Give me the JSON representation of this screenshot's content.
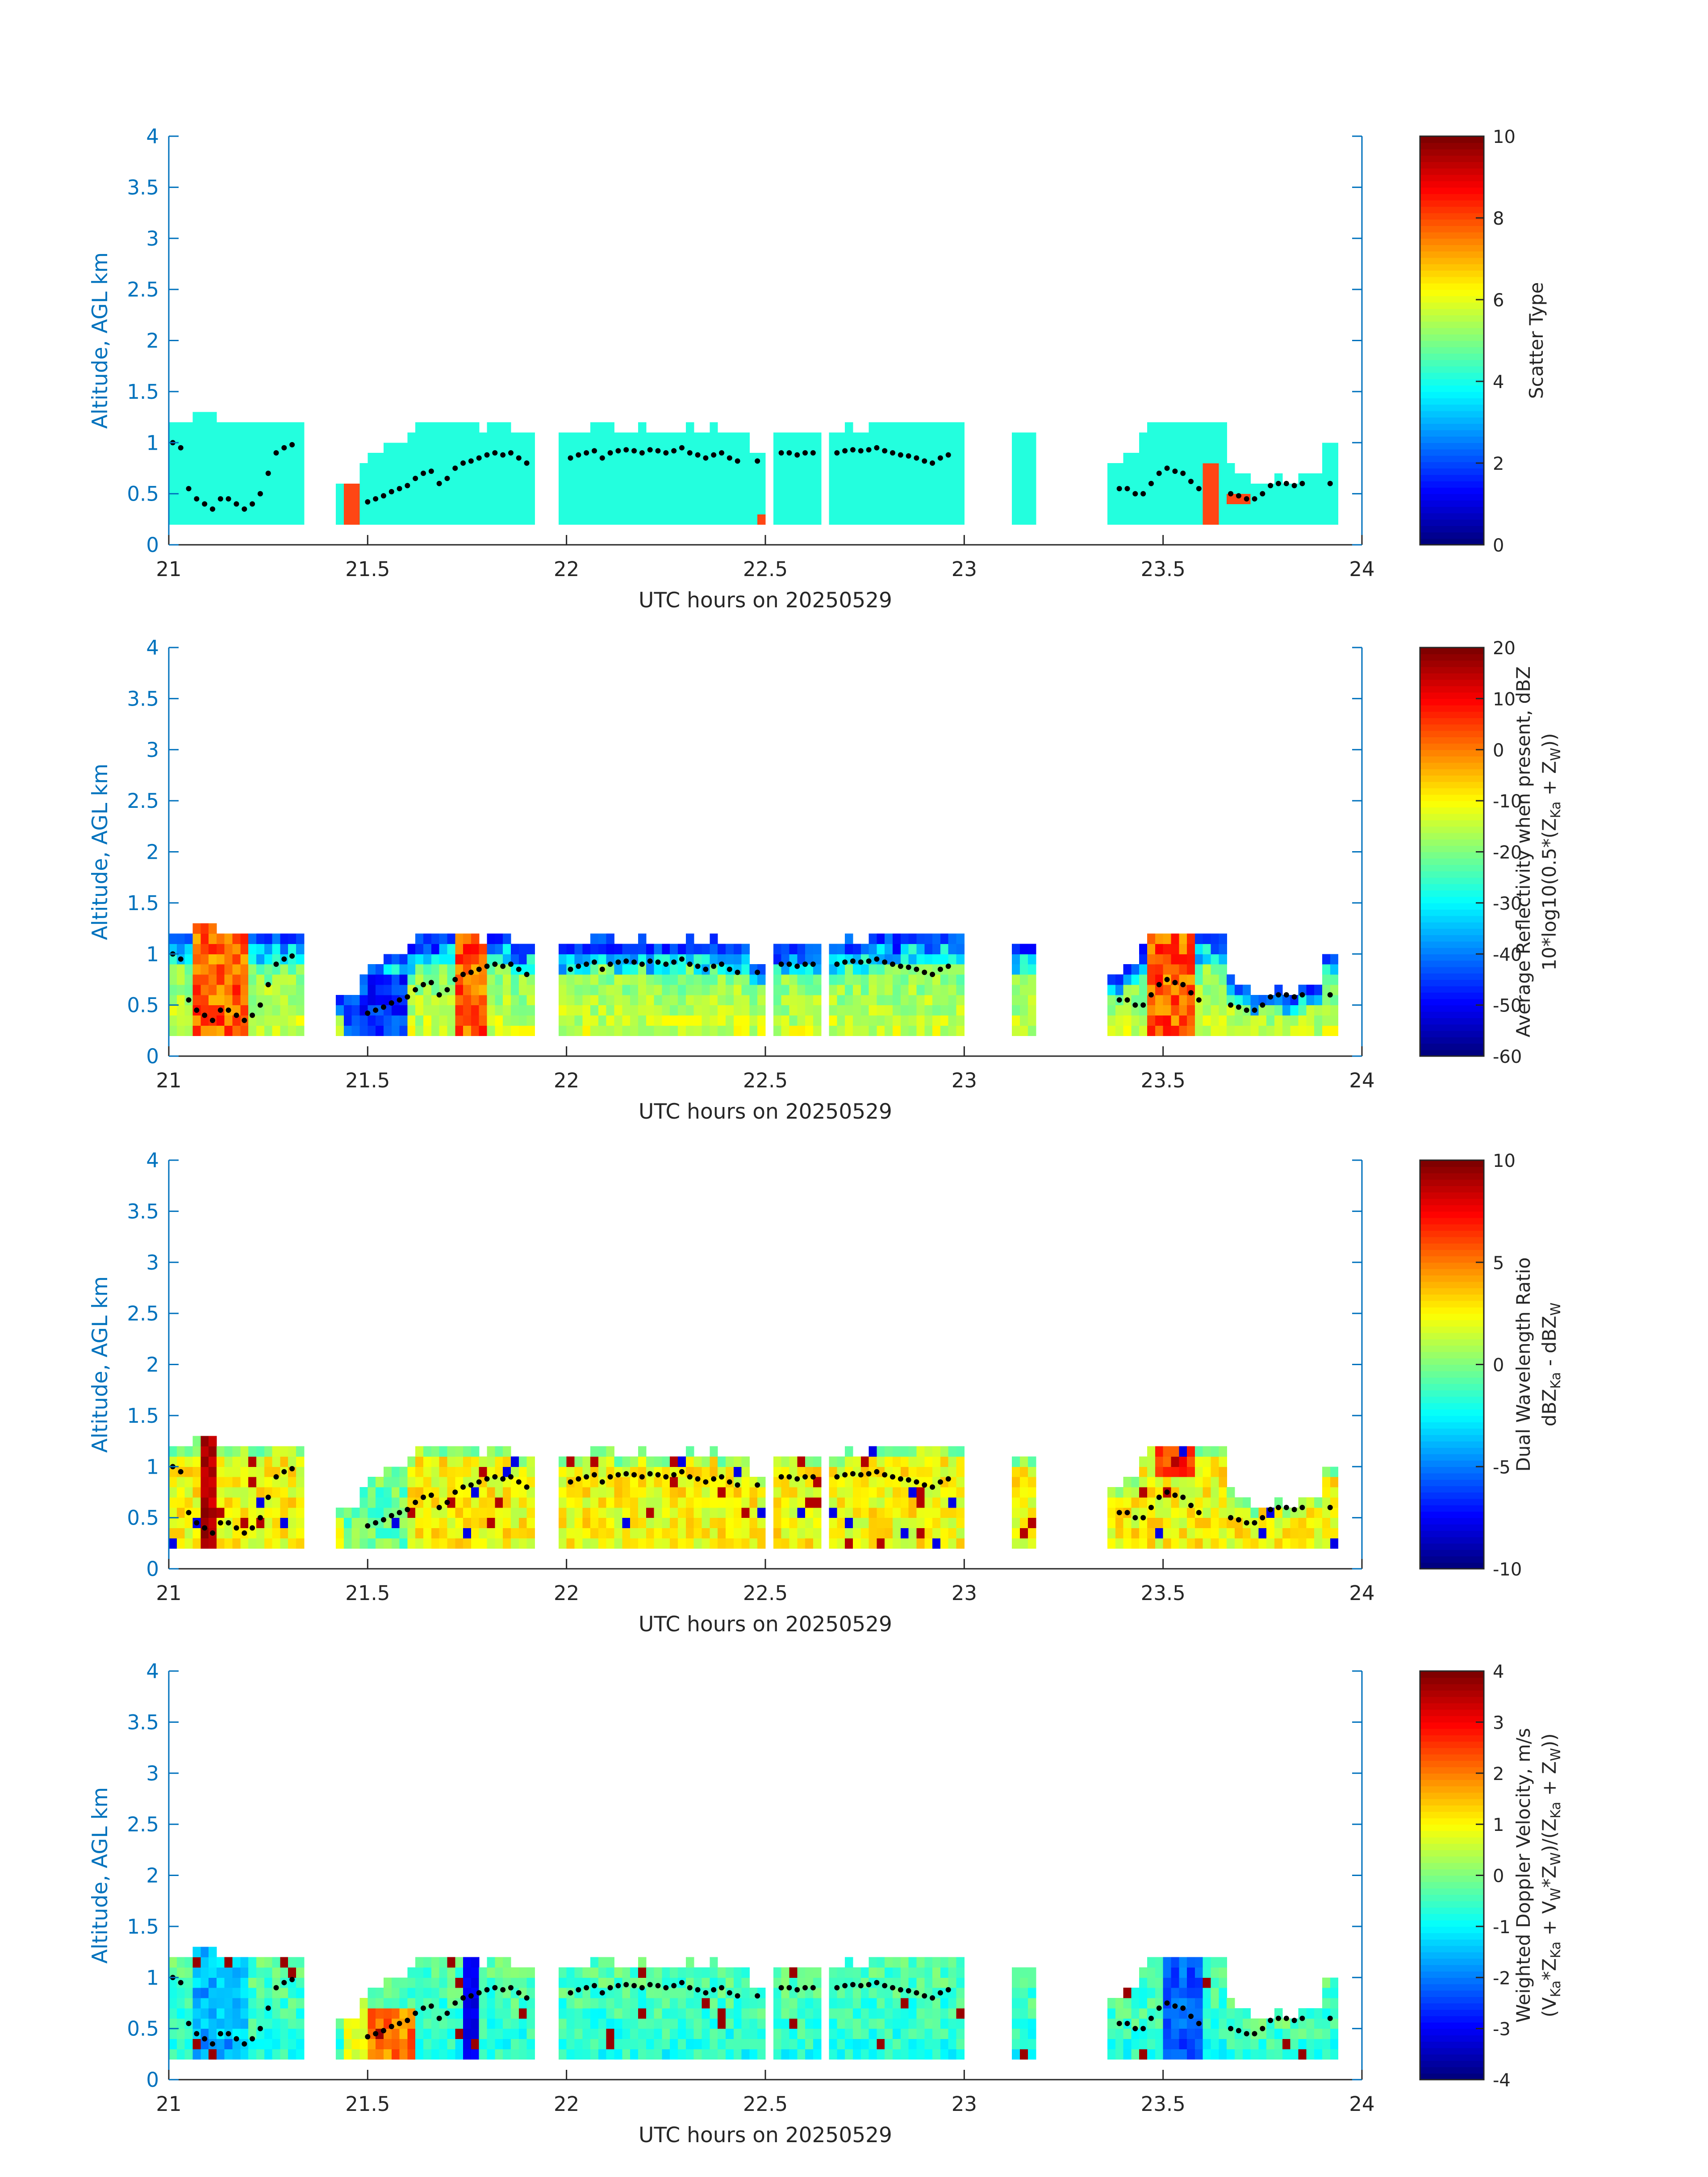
{
  "chart_data": [
    {
      "type": "heatmap",
      "title": "",
      "xlabel": "UTC hours on 20250529",
      "ylabel": "Altitude, AGL km",
      "xlim": [
        21,
        24
      ],
      "ylim": [
        0,
        4
      ],
      "x_ticks": [
        "21",
        "21.5",
        "22",
        "22.5",
        "23",
        "23.5",
        "24"
      ],
      "y_ticks": [
        "0",
        "0.5",
        "1",
        "1.5",
        "2",
        "2.5",
        "3",
        "3.5",
        "4"
      ],
      "colorbar": {
        "label_lines": [
          "Scatter Type"
        ],
        "clim": [
          0,
          10
        ],
        "ticks": [
          "0",
          "2",
          "4",
          "6",
          "8",
          "10"
        ]
      },
      "field": "scatter",
      "grid": false,
      "legend": "none"
    },
    {
      "type": "heatmap",
      "title": "",
      "xlabel": "UTC hours on 20250529",
      "ylabel": "Altitude, AGL km",
      "xlim": [
        21,
        24
      ],
      "ylim": [
        0,
        4
      ],
      "x_ticks": [
        "21",
        "21.5",
        "22",
        "22.5",
        "23",
        "23.5",
        "24"
      ],
      "y_ticks": [
        "0",
        "0.5",
        "1",
        "1.5",
        "2",
        "2.5",
        "3",
        "3.5",
        "4"
      ],
      "colorbar": {
        "label_lines": [
          "Average Reflectivity when present, dBZ",
          "10*log10(0.5*(Z_Ka + Z_W))"
        ],
        "clim": [
          -60,
          20
        ],
        "ticks": [
          "-60",
          "-50",
          "-40",
          "-30",
          "-20",
          "-10",
          "0",
          "10",
          "20"
        ]
      },
      "field": "reflectivity",
      "grid": false,
      "legend": "none"
    },
    {
      "type": "heatmap",
      "title": "",
      "xlabel": "UTC hours on 20250529",
      "ylabel": "Altitude, AGL km",
      "xlim": [
        21,
        24
      ],
      "ylim": [
        0,
        4
      ],
      "x_ticks": [
        "21",
        "21.5",
        "22",
        "22.5",
        "23",
        "23.5",
        "24"
      ],
      "y_ticks": [
        "0",
        "0.5",
        "1",
        "1.5",
        "2",
        "2.5",
        "3",
        "3.5",
        "4"
      ],
      "colorbar": {
        "label_lines": [
          "Dual Wavelength Ratio",
          "dBZ_Ka - dBZ_W"
        ],
        "clim": [
          -10,
          10
        ],
        "ticks": [
          "-10",
          "-5",
          "0",
          "5",
          "10"
        ]
      },
      "field": "dwr",
      "grid": false,
      "legend": "none"
    },
    {
      "type": "heatmap",
      "title": "",
      "xlabel": "UTC hours on 20250529",
      "ylabel": "Altitude, AGL km",
      "xlim": [
        21,
        24
      ],
      "ylim": [
        0,
        4
      ],
      "x_ticks": [
        "21",
        "21.5",
        "22",
        "22.5",
        "23",
        "23.5",
        "24"
      ],
      "y_ticks": [
        "0",
        "0.5",
        "1",
        "1.5",
        "2",
        "2.5",
        "3",
        "3.5",
        "4"
      ],
      "colorbar": {
        "label_lines": [
          "Weighted Doppler Velocity, m/s",
          "(V_Ka*Z_Ka + V_W*Z_W)/(Z_Ka + Z_W))"
        ],
        "clim": [
          -4,
          4
        ],
        "ticks": [
          "-4",
          "-3",
          "-2",
          "-1",
          "0",
          "1",
          "2",
          "3",
          "4"
        ]
      },
      "field": "velocity",
      "grid": false,
      "legend": "none"
    }
  ],
  "cloud_segments": [
    {
      "x0": 21.0,
      "x1": 21.33,
      "tops": [
        1.2,
        1.2,
        1.25,
        1.28,
        1.2,
        1.15,
        1.18,
        1.2,
        1.2,
        1.15,
        1.18
      ]
    },
    {
      "x0": 21.43,
      "x1": 21.47,
      "tops": [
        0.55,
        0.6
      ]
    },
    {
      "x0": 21.47,
      "x1": 21.92,
      "tops": [
        0.8,
        0.9,
        0.95,
        1.0,
        1.1,
        1.15,
        1.15,
        1.2,
        1.2,
        1.15,
        1.1,
        1.15,
        1.2,
        1.05,
        1.1
      ]
    },
    {
      "x0": 21.99,
      "x1": 22.45,
      "tops": [
        1.1,
        1.12,
        1.15,
        1.15,
        1.1,
        1.1,
        1.15,
        1.12,
        1.1,
        1.12,
        1.15,
        1.1,
        1.15,
        1.1,
        1.12
      ]
    },
    {
      "x0": 22.47,
      "x1": 22.5,
      "tops": [
        0.9
      ]
    },
    {
      "x0": 22.52,
      "x1": 22.64,
      "tops": [
        1.05,
        1.08,
        1.05,
        1.08
      ]
    },
    {
      "x0": 22.66,
      "x1": 22.99,
      "tops": [
        1.1,
        1.15,
        1.12,
        1.18,
        1.2,
        1.15,
        1.18,
        1.2,
        1.15,
        1.2,
        1.15
      ]
    },
    {
      "x0": 23.13,
      "x1": 23.17,
      "tops": [
        1.1
      ]
    },
    {
      "x0": 23.37,
      "x1": 23.65,
      "tops": [
        0.8,
        0.9,
        1.05,
        1.15,
        1.2,
        1.2,
        1.2,
        1.2,
        1.15
      ]
    },
    {
      "x0": 23.65,
      "x1": 23.9,
      "tops": [
        0.8,
        0.7,
        0.55,
        0.6,
        0.65,
        0.55,
        0.65,
        0.7
      ]
    },
    {
      "x0": 23.91,
      "x1": 23.93,
      "tops": [
        1.0
      ]
    }
  ],
  "cloud_base_dots": {
    "x": [
      21.01,
      21.03,
      21.05,
      21.07,
      21.09,
      21.11,
      21.13,
      21.15,
      21.17,
      21.19,
      21.21,
      21.23,
      21.25,
      21.27,
      21.29,
      21.31,
      21.5,
      21.52,
      21.54,
      21.56,
      21.58,
      21.6,
      21.62,
      21.64,
      21.66,
      21.68,
      21.7,
      21.72,
      21.74,
      21.76,
      21.78,
      21.8,
      21.82,
      21.84,
      21.86,
      21.88,
      21.9,
      22.01,
      22.03,
      22.05,
      22.07,
      22.09,
      22.11,
      22.13,
      22.15,
      22.17,
      22.19,
      22.21,
      22.23,
      22.25,
      22.27,
      22.29,
      22.31,
      22.33,
      22.35,
      22.37,
      22.39,
      22.41,
      22.43,
      22.48,
      22.54,
      22.56,
      22.58,
      22.6,
      22.62,
      22.68,
      22.7,
      22.72,
      22.74,
      22.76,
      22.78,
      22.8,
      22.82,
      22.84,
      22.86,
      22.88,
      22.9,
      22.92,
      22.94,
      22.96,
      23.39,
      23.41,
      23.43,
      23.45,
      23.47,
      23.49,
      23.51,
      23.53,
      23.55,
      23.57,
      23.59,
      23.67,
      23.69,
      23.71,
      23.73,
      23.75,
      23.77,
      23.79,
      23.81,
      23.83,
      23.85,
      23.92
    ],
    "y": [
      1.0,
      0.95,
      0.55,
      0.45,
      0.4,
      0.35,
      0.45,
      0.45,
      0.4,
      0.35,
      0.4,
      0.5,
      0.7,
      0.9,
      0.95,
      0.98,
      0.42,
      0.45,
      0.48,
      0.52,
      0.55,
      0.58,
      0.65,
      0.7,
      0.72,
      0.6,
      0.65,
      0.75,
      0.8,
      0.82,
      0.85,
      0.88,
      0.9,
      0.88,
      0.9,
      0.85,
      0.8,
      0.85,
      0.88,
      0.9,
      0.92,
      0.85,
      0.9,
      0.92,
      0.93,
      0.92,
      0.9,
      0.93,
      0.92,
      0.9,
      0.92,
      0.95,
      0.9,
      0.88,
      0.85,
      0.88,
      0.9,
      0.85,
      0.82,
      0.82,
      0.9,
      0.9,
      0.88,
      0.9,
      0.9,
      0.9,
      0.92,
      0.93,
      0.92,
      0.93,
      0.95,
      0.92,
      0.9,
      0.88,
      0.87,
      0.85,
      0.82,
      0.8,
      0.85,
      0.88,
      0.55,
      0.55,
      0.5,
      0.5,
      0.6,
      0.7,
      0.75,
      0.72,
      0.7,
      0.62,
      0.55,
      0.5,
      0.48,
      0.45,
      0.45,
      0.5,
      0.58,
      0.6,
      0.6,
      0.58,
      0.6,
      0.6
    ]
  },
  "colors": {
    "axis": "#0072bd",
    "text": "#262626",
    "scatter_type_cloud": "#23ffde",
    "scatter_type_other": "#ff4614",
    "colormap": "jet",
    "dot": "#000000"
  }
}
